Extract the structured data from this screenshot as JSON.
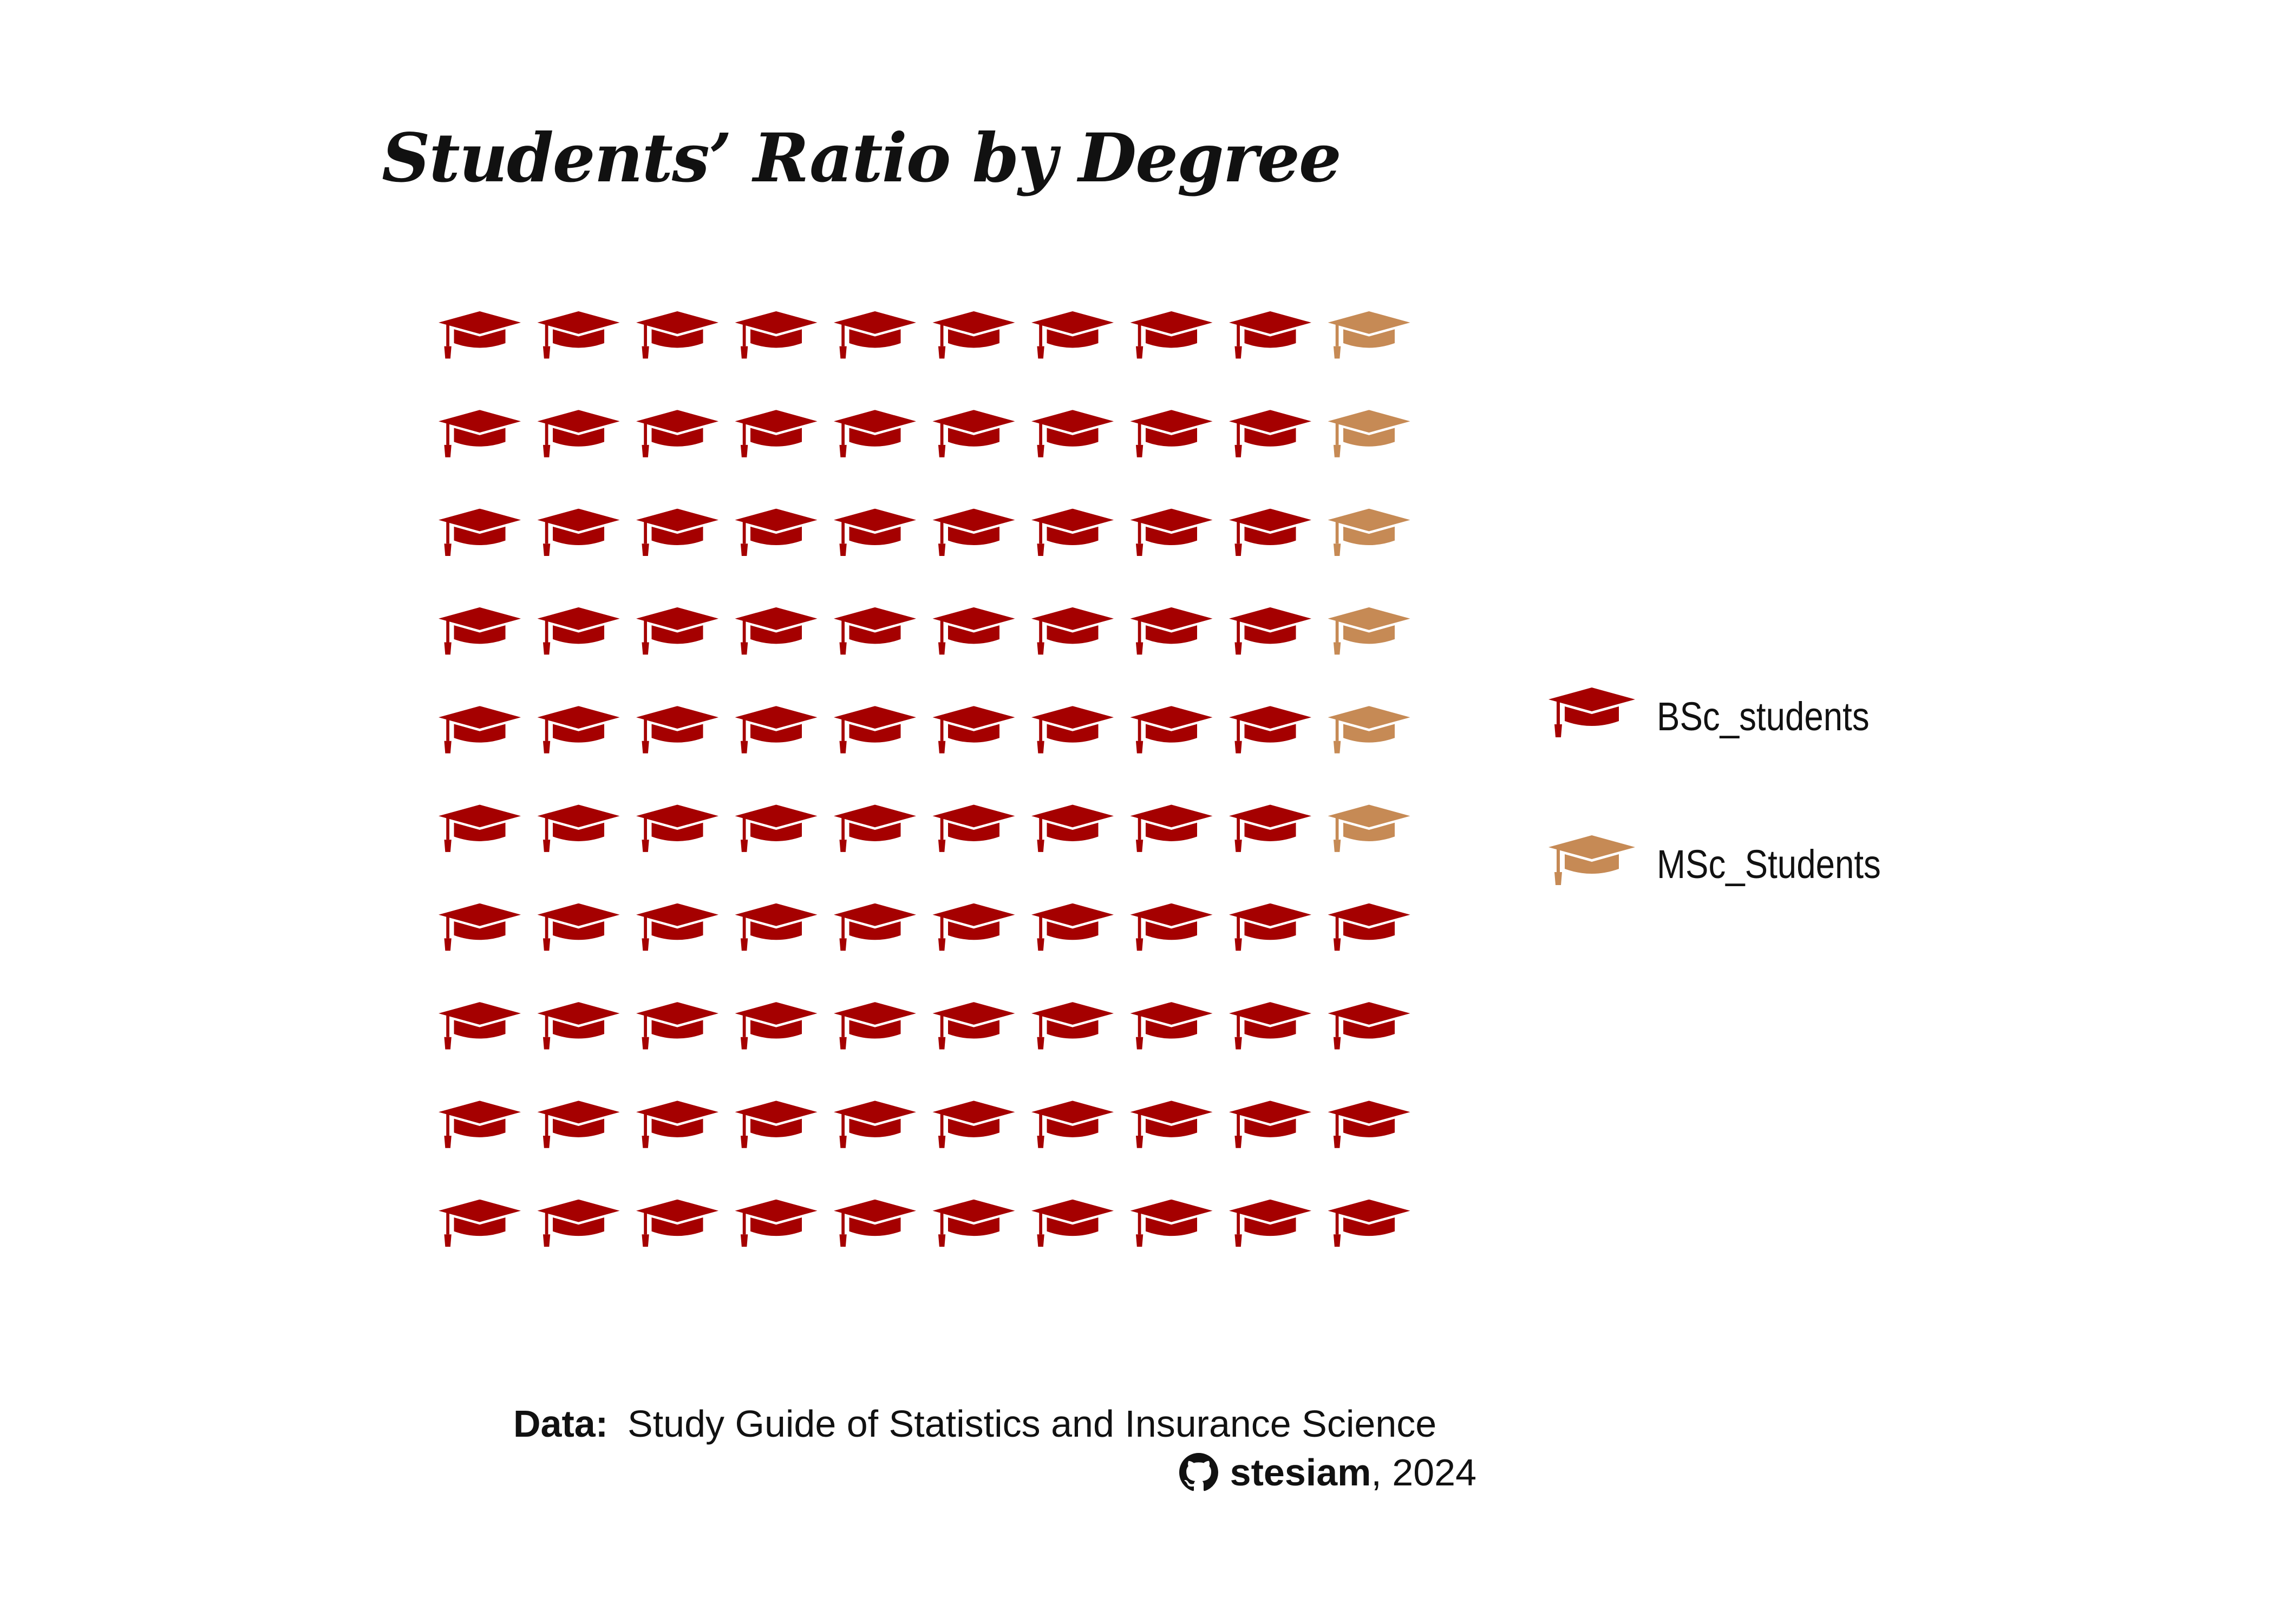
{
  "chart_data": {
    "type": "waffle",
    "title": "Students’ Ratio by Degree",
    "grid": {
      "rows": 10,
      "cols": 10
    },
    "icon": "graduation-cap-icon",
    "series": [
      {
        "name": "BSc_students",
        "value": 94,
        "color": "#a50000"
      },
      {
        "name": "MSc_Students",
        "value": 6,
        "color": "#c68a55"
      }
    ],
    "legend_position": "right"
  },
  "caption": {
    "label": "Data:",
    "source": "Study Guide of Statistics and Insurance Science",
    "author": "stesiam",
    "year_suffix": ", 2024"
  }
}
